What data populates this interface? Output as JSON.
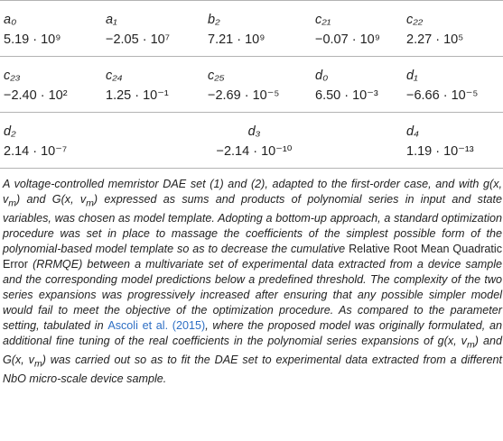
{
  "table": {
    "rows": [
      [
        {
          "symbol": "a₀",
          "value": "5.19 · 10⁹"
        },
        {
          "symbol": "a₁",
          "value": "−2.05 · 10⁷"
        },
        {
          "symbol": "b₂",
          "value": "7.21 · 10⁹"
        },
        {
          "symbol": "c₂₁",
          "value": "−0.07 · 10⁹"
        },
        {
          "symbol": "c₂₂",
          "value": "2.27 · 10⁵"
        }
      ],
      [
        {
          "symbol": "c₂₃",
          "value": "−2.40 · 10²"
        },
        {
          "symbol": "c₂₄",
          "value": "1.25 · 10⁻¹"
        },
        {
          "symbol": "c₂₅",
          "value": "−2.69 · 10⁻⁵"
        },
        {
          "symbol": "d₀",
          "value": "6.50 · 10⁻³"
        },
        {
          "symbol": "d₁",
          "value": "−6.66 · 10⁻⁵"
        }
      ],
      [
        {
          "symbol": "d₂",
          "value": "2.14 · 10⁻⁷"
        },
        {
          "symbol": "d₃",
          "value": "−2.14 · 10⁻¹⁰"
        },
        {
          "symbol": "d₄",
          "value": "1.19 · 10⁻¹³"
        }
      ]
    ]
  },
  "caption": {
    "part1": "A voltage-controlled memristor DAE set (1) and (2), adapted to the first-order case, and with g(x, v",
    "sub_m": "m",
    "part2": ") and G(x, v",
    "part3": ") expressed as sums and products of polynomial series in input and state variables, was chosen as model template. Adopting a bottom-up approach, a standard optimization procedure was set in place to massage the coefficients of the simplest possible form of the polynomial-based model template so as to decrease the cumulative ",
    "rrmqe_name": "Relative Root Mean Quadratic Error",
    "part4": " (RRMQE) between a multivariate set of experimental data extracted from a device sample and the corresponding model predictions below a predefined threshold. The complexity of the two series expansions was progressively increased after ensuring that any possible simpler model would fail to meet the objective of the optimization procedure. As compared to the parameter setting, tabulated in ",
    "citation": "Ascoli et al. (2015)",
    "part5": ", where the proposed model was originally formulated, an additional fine tuning of the real coefficients in the polynomial series expansions of g(x, v",
    "part6": ") and G(x, v",
    "part7": ") was carried out so as to fit the DAE set to experimental data extracted from a different NbO micro-scale device sample."
  }
}
